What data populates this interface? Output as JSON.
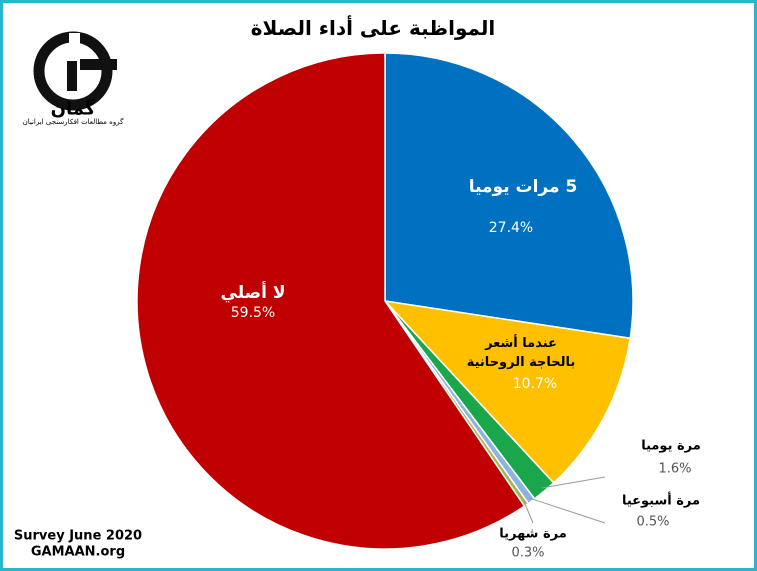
{
  "chart_data": {
    "type": "pie",
    "title": "المواظبة على أداء الصلاة",
    "categories": [
      "5 مرات يوميا",
      "عندما أشعر بالحاجة الروحانية",
      "مرة يوميا",
      "مرة أسبوعيا",
      "مرة شهريا",
      "لا أصلي"
    ],
    "values": [
      27.4,
      10.7,
      1.6,
      0.5,
      0.3,
      59.5
    ],
    "value_labels": [
      "27.4%",
      "10.7%",
      "1.6%",
      "0.5%",
      "0.3%",
      "59.5%"
    ],
    "colors": [
      "#0070c0",
      "#ffc000",
      "#1aa64a",
      "#8db3e2",
      "#a9b54a",
      "#c00000"
    ],
    "annotations": [
      "Survey June 2020",
      "GAMAAN.org"
    ]
  },
  "logo": {
    "name": "گمان",
    "tagline": "گروه مطالعات افکارسنجی ایرانیان"
  }
}
